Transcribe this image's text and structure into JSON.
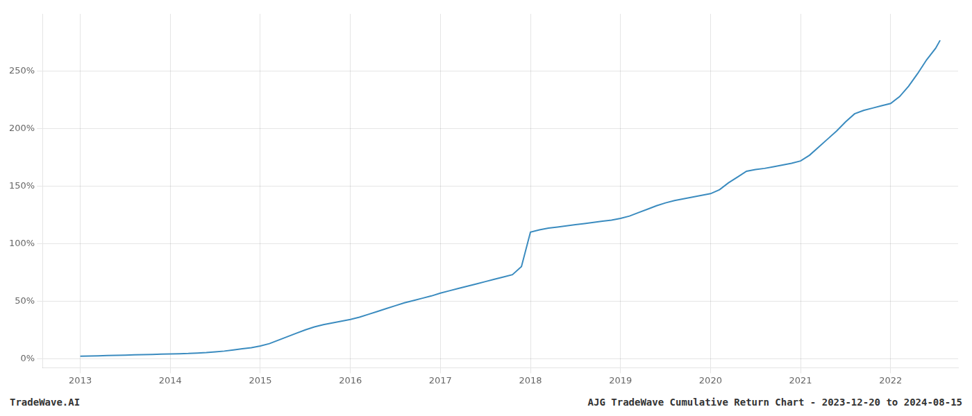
{
  "chart_data": {
    "type": "line",
    "title": "AJG TradeWave Cumulative Return Chart - 2023-12-20 to 2024-08-15",
    "annotations": [
      "TradeWave.AI"
    ],
    "color": "#3a8bbf",
    "grid": true,
    "x": [
      2013.0,
      2013.1,
      2013.2,
      2013.3,
      2013.4,
      2013.5,
      2013.6,
      2013.7,
      2013.8,
      2013.9,
      2014.0,
      2014.1,
      2014.2,
      2014.3,
      2014.4,
      2014.5,
      2014.6,
      2014.7,
      2014.8,
      2014.9,
      2015.0,
      2015.1,
      2015.2,
      2015.3,
      2015.4,
      2015.5,
      2015.6,
      2015.7,
      2015.8,
      2015.9,
      2016.0,
      2016.1,
      2016.2,
      2016.3,
      2016.4,
      2016.5,
      2016.6,
      2016.7,
      2016.8,
      2016.9,
      2017.0,
      2017.1,
      2017.2,
      2017.3,
      2017.4,
      2017.5,
      2017.6,
      2017.7,
      2017.8,
      2017.9,
      2018.0,
      2018.1,
      2018.2,
      2018.3,
      2018.4,
      2018.5,
      2018.6,
      2018.7,
      2018.8,
      2018.9,
      2019.0,
      2019.1,
      2019.2,
      2019.3,
      2019.4,
      2019.5,
      2019.6,
      2019.7,
      2019.8,
      2019.9,
      2020.0,
      2020.1,
      2020.2,
      2020.3,
      2020.4,
      2020.5,
      2020.6,
      2020.7,
      2020.8,
      2020.9,
      2021.0,
      2021.1,
      2021.2,
      2021.3,
      2021.4,
      2021.5,
      2021.6,
      2021.7,
      2021.8,
      2021.9,
      2022.0,
      2022.1,
      2022.2,
      2022.3,
      2022.4,
      2022.5,
      2022.55
    ],
    "values": [
      2.0,
      2.2,
      2.4,
      2.6,
      2.8,
      3.0,
      3.2,
      3.4,
      3.6,
      3.8,
      4.0,
      4.2,
      4.4,
      4.8,
      5.2,
      5.8,
      6.5,
      7.5,
      8.5,
      9.5,
      11.0,
      13.0,
      16.0,
      19.0,
      22.0,
      25.0,
      27.5,
      29.5,
      31.0,
      32.5,
      34.0,
      36.0,
      38.5,
      41.0,
      43.5,
      46.0,
      48.5,
      50.5,
      52.5,
      54.5,
      57.0,
      59.0,
      61.0,
      63.0,
      65.0,
      67.0,
      69.0,
      71.0,
      73.0,
      80.0,
      110.0,
      112.0,
      113.5,
      114.5,
      115.5,
      116.5,
      117.5,
      118.5,
      119.5,
      120.5,
      122.0,
      124.0,
      127.0,
      130.0,
      133.0,
      135.5,
      137.5,
      139.0,
      140.5,
      142.0,
      143.5,
      147.0,
      153.0,
      158.0,
      163.0,
      164.5,
      165.5,
      167.0,
      168.5,
      170.0,
      172.0,
      177.0,
      184.0,
      191.0,
      198.0,
      206.0,
      213.0,
      216.0,
      218.0,
      220.0,
      222.0,
      228.0,
      237.0,
      248.0,
      260.0,
      270.0,
      277.0
    ],
    "xlim": [
      2012.58,
      2022.75
    ],
    "xticks": [
      2013,
      2014,
      2015,
      2016,
      2017,
      2018,
      2019,
      2020,
      2021,
      2022
    ],
    "ylim": [
      -8,
      300
    ],
    "yticks": [
      {
        "value": 0,
        "label": "0%"
      },
      {
        "value": 50,
        "label": "50%"
      },
      {
        "value": 100,
        "label": "100%"
      },
      {
        "value": 150,
        "label": "150%"
      },
      {
        "value": 200,
        "label": "200%"
      },
      {
        "value": 250,
        "label": "250%"
      }
    ]
  }
}
